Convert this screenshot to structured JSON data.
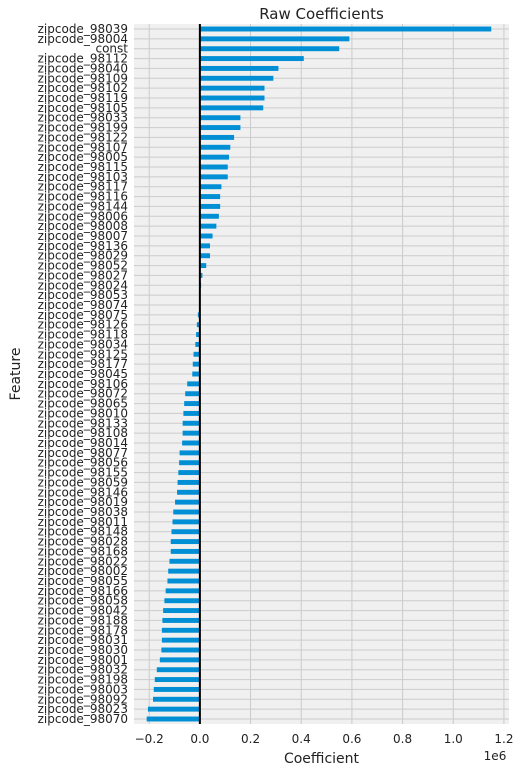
{
  "chart_data": {
    "type": "bar",
    "orientation": "horizontal",
    "title": "Raw Coefficients",
    "xlabel": "Coefficient",
    "ylabel": "Feature",
    "x_scale_label": "1e6",
    "xlim": [
      -0.26,
      1.22
    ],
    "x_ticks": [
      -0.2,
      0.0,
      0.2,
      0.4,
      0.6,
      0.8,
      1.0,
      1.2
    ],
    "x_tick_labels": [
      "−0.2",
      "0.0",
      "0.2",
      "0.4",
      "0.6",
      "0.8",
      "1.0",
      "1.2"
    ],
    "grid": true,
    "bar_color": "#008fd5",
    "zero_line_color": "#000000",
    "plot_background": "#f0f0f0",
    "categories": [
      "zipcode_98039",
      "zipcode_98004",
      "const",
      "zipcode_98112",
      "zipcode_98040",
      "zipcode_98109",
      "zipcode_98102",
      "zipcode_98119",
      "zipcode_98105",
      "zipcode_98033",
      "zipcode_98199",
      "zipcode_98122",
      "zipcode_98107",
      "zipcode_98005",
      "zipcode_98115",
      "zipcode_98103",
      "zipcode_98117",
      "zipcode_98116",
      "zipcode_98144",
      "zipcode_98006",
      "zipcode_98008",
      "zipcode_98007",
      "zipcode_98136",
      "zipcode_98029",
      "zipcode_98052",
      "zipcode_98027",
      "zipcode_98024",
      "zipcode_98053",
      "zipcode_98074",
      "zipcode_98075",
      "zipcode_98126",
      "zipcode_98118",
      "zipcode_98034",
      "zipcode_98125",
      "zipcode_98177",
      "zipcode_98045",
      "zipcode_98106",
      "zipcode_98072",
      "zipcode_98065",
      "zipcode_98010",
      "zipcode_98133",
      "zipcode_98108",
      "zipcode_98014",
      "zipcode_98077",
      "zipcode_98056",
      "zipcode_98155",
      "zipcode_98059",
      "zipcode_98146",
      "zipcode_98019",
      "zipcode_98038",
      "zipcode_98011",
      "zipcode_98148",
      "zipcode_98028",
      "zipcode_98168",
      "zipcode_98022",
      "zipcode_98002",
      "zipcode_98055",
      "zipcode_98166",
      "zipcode_98058",
      "zipcode_98042",
      "zipcode_98188",
      "zipcode_98178",
      "zipcode_98031",
      "zipcode_98030",
      "zipcode_98001",
      "zipcode_98032",
      "zipcode_98198",
      "zipcode_98003",
      "zipcode_98092",
      "zipcode_98023",
      "zipcode_98070"
    ],
    "values": [
      1.15,
      0.59,
      0.55,
      0.41,
      0.31,
      0.29,
      0.255,
      0.255,
      0.25,
      0.16,
      0.16,
      0.135,
      0.12,
      0.115,
      0.11,
      0.11,
      0.085,
      0.08,
      0.08,
      0.075,
      0.065,
      0.05,
      0.04,
      0.04,
      0.025,
      0.01,
      0.005,
      0.0,
      -0.003,
      -0.008,
      -0.012,
      -0.015,
      -0.018,
      -0.025,
      -0.028,
      -0.03,
      -0.05,
      -0.058,
      -0.062,
      -0.065,
      -0.068,
      -0.068,
      -0.07,
      -0.08,
      -0.082,
      -0.085,
      -0.088,
      -0.09,
      -0.098,
      -0.105,
      -0.108,
      -0.112,
      -0.115,
      -0.115,
      -0.12,
      -0.125,
      -0.128,
      -0.135,
      -0.14,
      -0.145,
      -0.148,
      -0.15,
      -0.15,
      -0.152,
      -0.158,
      -0.17,
      -0.178,
      -0.182,
      -0.185,
      -0.205,
      -0.21
    ]
  }
}
